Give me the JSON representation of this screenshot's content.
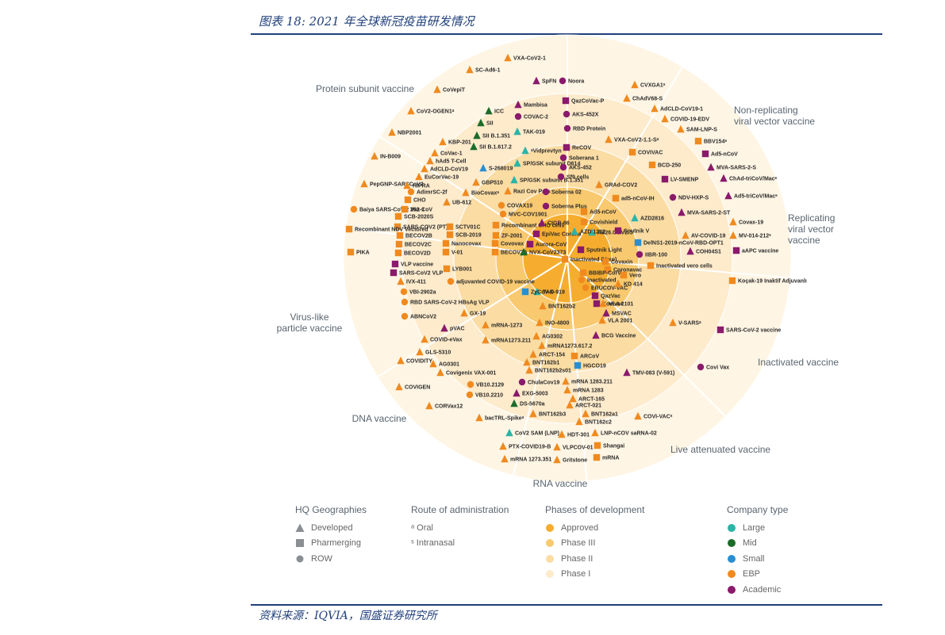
{
  "figure_title": "图表 18:  2021 年全球新冠疫苗研发情况",
  "source": "资料来源：IQVIA，国盛证券研究所",
  "colors": {
    "ring_approved": "#f6ad2f",
    "ring_phase3": "#f9c96f",
    "ring_phase2": "#fbdca3",
    "ring_phase1": "#fdebcc",
    "bg": "#fef5e4",
    "large": "#2bb4a8",
    "mid": "#1c6b2a",
    "small": "#2a8fd0",
    "ebp": "#f08a1e",
    "academic": "#8a1a6b"
  },
  "sectors": [
    {
      "label_lines": [
        "Protein subunit vaccine"
      ]
    },
    {
      "label_lines": [
        "Non-replicating",
        "viral vector vaccine"
      ]
    },
    {
      "label_lines": [
        "Replicating",
        "viral vector",
        "vaccine"
      ]
    },
    {
      "label_lines": [
        "Inactivated vaccine"
      ]
    },
    {
      "label_lines": [
        "Live attenuated vaccine"
      ]
    },
    {
      "label_lines": [
        "RNA vaccine"
      ]
    },
    {
      "label_lines": [
        "DNA vaccine"
      ]
    },
    {
      "label_lines": [
        "Virus-like",
        "particle vaccine"
      ]
    }
  ],
  "candidates": [
    {
      "label": "VXA-CoV2-1",
      "shape": "tri",
      "type": "ebp"
    },
    {
      "label": "SC-Ad6-1",
      "shape": "tri",
      "type": "ebp"
    },
    {
      "label": "CoVepiT",
      "shape": "tri",
      "type": "ebp"
    },
    {
      "label": "SpFN",
      "shape": "tri",
      "type": "academic"
    },
    {
      "label": "Noora",
      "shape": "circle",
      "type": "academic"
    },
    {
      "label": "CoV2-OGEN1ᵃ",
      "shape": "tri",
      "type": "ebp"
    },
    {
      "label": "ICC",
      "shape": "tri",
      "type": "mid"
    },
    {
      "label": "Mambisa",
      "shape": "tri",
      "type": "academic"
    },
    {
      "label": "QazCoVac-P",
      "shape": "square",
      "type": "academic"
    },
    {
      "label": "SII",
      "shape": "tri",
      "type": "mid"
    },
    {
      "label": "COVAC-2",
      "shape": "circle",
      "type": "academic"
    },
    {
      "label": "AKS-452X",
      "shape": "circle",
      "type": "academic"
    },
    {
      "label": "NBP2001",
      "shape": "tri",
      "type": "ebp"
    },
    {
      "label": "SII B.1.351",
      "shape": "tri",
      "type": "mid"
    },
    {
      "label": "TAK-019",
      "shape": "tri",
      "type": "large"
    },
    {
      "label": "RBD Protein",
      "shape": "circle",
      "type": "academic"
    },
    {
      "label": "KBP-201",
      "shape": "tri",
      "type": "ebp"
    },
    {
      "label": "SII B.1.617.2",
      "shape": "tri",
      "type": "mid"
    },
    {
      "label": "ᵃVidprevtyn",
      "shape": "tri",
      "type": "large"
    },
    {
      "label": "ReCOV",
      "shape": "square",
      "type": "academic"
    },
    {
      "label": "CoVac-1",
      "shape": "tri",
      "type": "ebp"
    },
    {
      "label": "IN-B009",
      "shape": "tri",
      "type": "ebp"
    },
    {
      "label": "hAd5 T-Cell",
      "shape": "tri",
      "type": "ebp"
    },
    {
      "label": "SP/GSK subunit D614",
      "shape": "tri",
      "type": "large"
    },
    {
      "label": "Soberana 1",
      "shape": "circle",
      "type": "academic"
    },
    {
      "label": "AdCLD-CoV19",
      "shape": "tri",
      "type": "ebp"
    },
    {
      "label": "S-268019",
      "shape": "tri",
      "type": "small"
    },
    {
      "label": "AKS-452",
      "shape": "circle",
      "type": "academic"
    },
    {
      "label": "EuCorVac-19",
      "shape": "tri",
      "type": "ebp"
    },
    {
      "label": "SP/GSK subunit B.1.351",
      "shape": "tri",
      "type": "large"
    },
    {
      "label": "Sf9 cells",
      "shape": "circle",
      "type": "academic"
    },
    {
      "label": "PepGNP-SARSCoV2",
      "shape": "tri",
      "type": "ebp"
    },
    {
      "label": "HIPRA",
      "shape": "tri",
      "type": "ebp"
    },
    {
      "label": "GBP510",
      "shape": "tri",
      "type": "ebp"
    },
    {
      "label": "AdimrSC-2f",
      "shape": "circle",
      "type": "ebp"
    },
    {
      "label": "BioCovaxᵃ",
      "shape": "tri",
      "type": "ebp"
    },
    {
      "label": "Razi Cov Pars",
      "shape": "tri",
      "type": "ebp"
    },
    {
      "label": "Soberna 02",
      "shape": "circle",
      "type": "academic"
    },
    {
      "label": "CHO",
      "shape": "square",
      "type": "ebp"
    },
    {
      "label": "UB-612",
      "shape": "tri",
      "type": "ebp"
    },
    {
      "label": "Baiya SARS-CoV-2 Vax 1",
      "shape": "circle",
      "type": "ebp"
    },
    {
      "label": "202-CoV",
      "shape": "square",
      "type": "ebp"
    },
    {
      "label": "COVAX19",
      "shape": "circle",
      "type": "ebp"
    },
    {
      "label": "Soberna Plus",
      "shape": "circle",
      "type": "academic"
    },
    {
      "label": "SCB-2020S",
      "shape": "square",
      "type": "ebp"
    },
    {
      "label": "MVC-COV1901",
      "shape": "circle",
      "type": "ebp"
    },
    {
      "label": "SARS-COV2 (PT)",
      "shape": "square",
      "type": "ebp"
    },
    {
      "label": "Recombinant NDV Vectored",
      "shape": "square",
      "type": "ebp"
    },
    {
      "label": "SCTV01C",
      "shape": "square",
      "type": "ebp"
    },
    {
      "label": "Recombinant CHO cells",
      "shape": "square",
      "type": "ebp"
    },
    {
      "label": "CIGB-66",
      "shape": "tri",
      "type": "academic"
    },
    {
      "label": "BECOV2B",
      "shape": "square",
      "type": "ebp"
    },
    {
      "label": "SCB-2019",
      "shape": "square",
      "type": "ebp"
    },
    {
      "label": "ZF-2001",
      "shape": "square",
      "type": "ebp"
    },
    {
      "label": "EpiVac Corona",
      "shape": "square",
      "type": "academic"
    },
    {
      "label": "BECOV2C",
      "shape": "square",
      "type": "ebp"
    },
    {
      "label": "Nanocovax",
      "shape": "square",
      "type": "ebp"
    },
    {
      "label": "Covovax",
      "shape": "square",
      "type": "ebp"
    },
    {
      "label": "Aurora-CoV",
      "shape": "square",
      "type": "academic"
    },
    {
      "label": "PIKA",
      "shape": "square",
      "type": "ebp"
    },
    {
      "label": "BECOV2D",
      "shape": "square",
      "type": "ebp"
    },
    {
      "label": "V-01",
      "shape": "square",
      "type": "ebp"
    },
    {
      "label": "BECOV2A",
      "shape": "square",
      "type": "ebp"
    },
    {
      "label": "NVX-CoV2373",
      "shape": "tri",
      "type": "mid"
    },
    {
      "label": "VLP vaccine",
      "shape": "square",
      "type": "academic"
    },
    {
      "label": "SARS-CoV2 VLP",
      "shape": "square",
      "type": "academic"
    },
    {
      "label": "LYB001",
      "shape": "square",
      "type": "ebp"
    },
    {
      "label": "IVX-411",
      "shape": "tri",
      "type": "ebp"
    },
    {
      "label": "adjuvanted COVID-19 vaccine",
      "shape": "circle",
      "type": "ebp"
    },
    {
      "label": "VBI-2902a",
      "shape": "circle",
      "type": "ebp"
    },
    {
      "label": "RBD SARS-CoV-2 HBsAg VLP",
      "shape": "circle",
      "type": "ebp"
    },
    {
      "label": "ABNCoV2",
      "shape": "circle",
      "type": "ebp"
    },
    {
      "label": "CVXGA1ˢ",
      "shape": "tri",
      "type": "ebp"
    },
    {
      "label": "ChAdV68-S",
      "shape": "tri",
      "type": "ebp"
    },
    {
      "label": "AdCLD-CoV19-1",
      "shape": "tri",
      "type": "ebp"
    },
    {
      "label": "COVID-19-EDV",
      "shape": "tri",
      "type": "ebp"
    },
    {
      "label": "SAM-LNP-S",
      "shape": "tri",
      "type": "ebp"
    },
    {
      "label": "BBV154ˢ",
      "shape": "square",
      "type": "ebp"
    },
    {
      "label": "Ad5-nCoV",
      "shape": "square",
      "type": "academic"
    },
    {
      "label": "VXA-CoV2-1.1-Sᵃ",
      "shape": "tri",
      "type": "ebp"
    },
    {
      "label": "COVIVAC",
      "shape": "square",
      "type": "ebp"
    },
    {
      "label": "BCD-250",
      "shape": "square",
      "type": "ebp"
    },
    {
      "label": "MVA-SARS-2-S",
      "shape": "tri",
      "type": "academic"
    },
    {
      "label": "ChAd-triCoV/Macˢ",
      "shape": "tri",
      "type": "academic"
    },
    {
      "label": "LV-SMENP",
      "shape": "square",
      "type": "academic"
    },
    {
      "label": "GRAd-COV2",
      "shape": "tri",
      "type": "ebp"
    },
    {
      "label": "Ad5-triCoV/Macˢ",
      "shape": "tri",
      "type": "academic"
    },
    {
      "label": "NDV-HXP-S",
      "shape": "circle",
      "type": "academic"
    },
    {
      "label": "ad5-nCoV-IH",
      "shape": "square",
      "type": "ebp"
    },
    {
      "label": "MVA-SARS-2-ST",
      "shape": "tri",
      "type": "academic"
    },
    {
      "label": "Ad5-nCoV",
      "shape": "square",
      "type": "ebp"
    },
    {
      "label": "AZD2816",
      "shape": "tri",
      "type": "large"
    },
    {
      "label": "Covishield",
      "shape": "square",
      "type": "ebp"
    },
    {
      "label": "Ad26.COV2.S",
      "shape": "tri",
      "type": "large"
    },
    {
      "label": "AZD 1222",
      "shape": "tri",
      "type": "large"
    },
    {
      "label": "Sputnik V",
      "shape": "square",
      "type": "academic"
    },
    {
      "label": "Sputnik Light",
      "shape": "square",
      "type": "academic"
    },
    {
      "label": "Covax-19",
      "shape": "tri",
      "type": "ebp"
    },
    {
      "label": "AV-COVID-19",
      "shape": "tri",
      "type": "ebp"
    },
    {
      "label": "MV-014-212ˢ",
      "shape": "tri",
      "type": "ebp"
    },
    {
      "label": "DelNS1-2019-nCoV-RBD-OPT1",
      "shape": "square",
      "type": "small"
    },
    {
      "label": "COH04S1",
      "shape": "tri",
      "type": "academic"
    },
    {
      "label": "aAPC vaccine",
      "shape": "square",
      "type": "academic"
    },
    {
      "label": "IIBR-100",
      "shape": "circle",
      "type": "academic"
    },
    {
      "label": "Inactivated (Vero)",
      "shape": "square",
      "type": "ebp"
    },
    {
      "label": "Covaxin",
      "shape": "square",
      "type": "ebp"
    },
    {
      "label": "Coronavac",
      "shape": "square",
      "type": "ebp"
    },
    {
      "label": "Inactivated vero cells",
      "shape": "square",
      "type": "ebp"
    },
    {
      "label": "BBIBP-CorV",
      "shape": "square",
      "type": "ebp"
    },
    {
      "label": "Vero",
      "shape": "square",
      "type": "ebp"
    },
    {
      "label": "Inactivated",
      "shape": "circle",
      "type": "ebp"
    },
    {
      "label": "ERUCOV-VAC",
      "shape": "circle",
      "type": "ebp"
    },
    {
      "label": "KD 414",
      "shape": "tri",
      "type": "ebp"
    },
    {
      "label": "QazVac",
      "shape": "square",
      "type": "academic"
    },
    {
      "label": "Koçak-19 Inaktif Adjuvanlı",
      "shape": "square",
      "type": "ebp"
    },
    {
      "label": "Kovivac",
      "shape": "square",
      "type": "academic"
    },
    {
      "label": "VLA 2101",
      "shape": "tri",
      "type": "ebp"
    },
    {
      "label": "MSVAC",
      "shape": "tri",
      "type": "academic"
    },
    {
      "label": "VLA 2001",
      "shape": "tri",
      "type": "ebp"
    },
    {
      "label": "V-SARSᵃ",
      "shape": "tri",
      "type": "ebp"
    },
    {
      "label": "SARS-CoV-2 vaccine",
      "shape": "square",
      "type": "academic"
    },
    {
      "label": "BCG Vaccine",
      "shape": "tri",
      "type": "academic"
    },
    {
      "label": "Covi Vax",
      "shape": "circle",
      "type": "academic"
    },
    {
      "label": "TMV-083 (V-591)",
      "shape": "tri",
      "type": "academic"
    },
    {
      "label": "COVI-VACˢ",
      "shape": "tri",
      "type": "ebp"
    },
    {
      "label": "TAK-919",
      "shape": "tri",
      "type": "large"
    },
    {
      "label": "ZyCoV-D",
      "shape": "square",
      "type": "small"
    },
    {
      "label": "BNT162b2",
      "shape": "tri",
      "type": "ebp"
    },
    {
      "label": "GX-19",
      "shape": "tri",
      "type": "ebp"
    },
    {
      "label": "mRNA-1273",
      "shape": "tri",
      "type": "ebp"
    },
    {
      "label": "INO-4800",
      "shape": "tri",
      "type": "ebp"
    },
    {
      "label": "mRNA1273.211",
      "shape": "tri",
      "type": "ebp"
    },
    {
      "label": "AG0302",
      "shape": "tri",
      "type": "ebp"
    },
    {
      "label": "mRNA1273.617.2",
      "shape": "tri",
      "type": "ebp"
    },
    {
      "label": "ARCT-154",
      "shape": "tri",
      "type": "ebp"
    },
    {
      "label": "ARCoV",
      "shape": "square",
      "type": "ebp"
    },
    {
      "label": "BNT162b1",
      "shape": "tri",
      "type": "ebp"
    },
    {
      "label": "HGCO19",
      "shape": "square",
      "type": "small"
    },
    {
      "label": "BNT162b2s01",
      "shape": "tri",
      "type": "ebp"
    },
    {
      "label": "pVAC",
      "shape": "tri",
      "type": "academic"
    },
    {
      "label": "COVID-eVax",
      "shape": "tri",
      "type": "ebp"
    },
    {
      "label": "GLS-5310",
      "shape": "tri",
      "type": "ebp"
    },
    {
      "label": "AG0301",
      "shape": "tri",
      "type": "ebp"
    },
    {
      "label": "COVIDITY",
      "shape": "tri",
      "type": "ebp"
    },
    {
      "label": "Covigenix VAX-001",
      "shape": "tri",
      "type": "ebp"
    },
    {
      "label": "VB10.2129",
      "shape": "circle",
      "type": "ebp"
    },
    {
      "label": "COVIGEN",
      "shape": "tri",
      "type": "ebp"
    },
    {
      "label": "VB10.2210",
      "shape": "circle",
      "type": "ebp"
    },
    {
      "label": "CORVax12",
      "shape": "tri",
      "type": "ebp"
    },
    {
      "label": "bacTRL-Spikeᵃ",
      "shape": "tri",
      "type": "ebp"
    },
    {
      "label": "ChulaCov19",
      "shape": "circle",
      "type": "academic"
    },
    {
      "label": "mRNA 1283.211",
      "shape": "tri",
      "type": "ebp"
    },
    {
      "label": "EXG-5003",
      "shape": "tri",
      "type": "academic"
    },
    {
      "label": "mRNA 1283",
      "shape": "tri",
      "type": "ebp"
    },
    {
      "label": "ARCT-165",
      "shape": "tri",
      "type": "ebp"
    },
    {
      "label": "DS-5670a",
      "shape": "tri",
      "type": "mid"
    },
    {
      "label": "ARCT-021",
      "shape": "tri",
      "type": "ebp"
    },
    {
      "label": "BNT162b3",
      "shape": "tri",
      "type": "ebp"
    },
    {
      "label": "BNT162a1",
      "shape": "tri",
      "type": "ebp"
    },
    {
      "label": "BNT162c2",
      "shape": "tri",
      "type": "ebp"
    },
    {
      "label": "CoV2 SAM (LNP)",
      "shape": "tri",
      "type": "large"
    },
    {
      "label": "HDT-301",
      "shape": "tri",
      "type": "ebp"
    },
    {
      "label": "LNP-nCOV saRNA-02",
      "shape": "tri",
      "type": "ebp"
    },
    {
      "label": "PTX-COVID19-B",
      "shape": "tri",
      "type": "ebp"
    },
    {
      "label": "VLPCOV-01",
      "shape": "tri",
      "type": "ebp"
    },
    {
      "label": "Shangai",
      "shape": "square",
      "type": "ebp"
    },
    {
      "label": "mRNA 1273.351",
      "shape": "tri",
      "type": "ebp"
    },
    {
      "label": "Gritstone",
      "shape": "tri",
      "type": "ebp"
    },
    {
      "label": "mRNA",
      "shape": "square",
      "type": "ebp"
    }
  ],
  "legend": {
    "hq": {
      "title": "HQ Geographies",
      "items": [
        {
          "label": "Developed",
          "shape": "tri"
        },
        {
          "label": "Pharmerging",
          "shape": "square"
        },
        {
          "label": "ROW",
          "shape": "circle"
        }
      ]
    },
    "route": {
      "title": "Route of administration",
      "items": [
        {
          "label": "ᵃ Oral"
        },
        {
          "label": "ˢ Intranasal"
        }
      ]
    },
    "phase": {
      "title": "Phases of development",
      "items": [
        {
          "label": "Approved",
          "color": "#f6ad2f"
        },
        {
          "label": "Phase III",
          "color": "#f9c96f"
        },
        {
          "label": "Phase II",
          "color": "#fbdca3"
        },
        {
          "label": "Phase I",
          "color": "#fdebcc"
        }
      ]
    },
    "company": {
      "title": "Company type",
      "items": [
        {
          "label": "Large",
          "color": "#2bb4a8"
        },
        {
          "label": "Mid",
          "color": "#1c6b2a"
        },
        {
          "label": "Small",
          "color": "#2a8fd0"
        },
        {
          "label": "EBP",
          "color": "#f08a1e"
        },
        {
          "label": "Academic",
          "color": "#8a1a6b"
        }
      ]
    }
  }
}
